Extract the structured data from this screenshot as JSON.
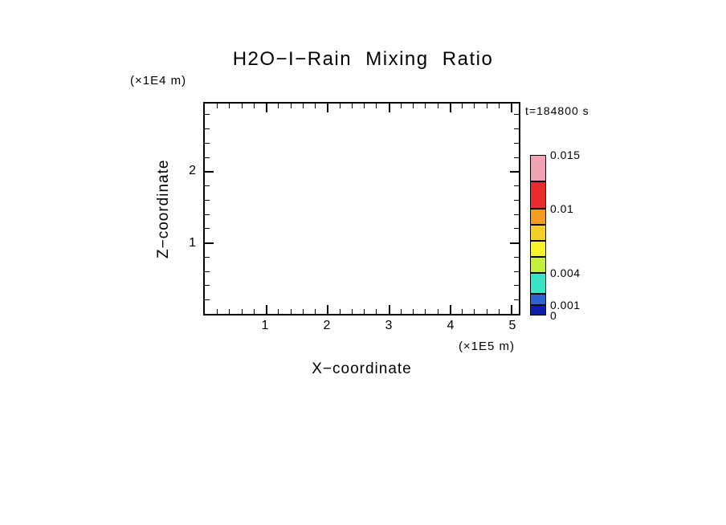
{
  "chart_data": {
    "type": "heatmap",
    "title": "H2O−I−Rain Mixing Ratio",
    "time_label": "t=184800 s",
    "xlabel": "X−coordinate",
    "zlabel": "Z−coordinate",
    "x_units": "(×1E5 m)",
    "z_units": "(×1E4 m)",
    "x_axis": {
      "min": 0,
      "max": 5.13,
      "major_ticks": [
        1,
        2,
        3,
        4,
        5
      ],
      "minor_step": 0.2
    },
    "z_axis": {
      "min": 0,
      "max": 2.95,
      "major_ticks": [
        1,
        2
      ],
      "minor_step": 0.2
    },
    "field_values_visible": false,
    "plot_area_note": "no contour/fill values above the lowest level are visible; plot interior is blank",
    "colorbar": {
      "levels": [
        0,
        0.001,
        0.002,
        0.004,
        0.0055,
        0.007,
        0.0085,
        0.01,
        0.0125,
        0.015
      ],
      "colors": [
        "#0b1fa8",
        "#2e62d2",
        "#3ae2c6",
        "#c3f13c",
        "#f7f32a",
        "#f5d02b",
        "#f59d20",
        "#ea2b2e",
        "#f2a3b3"
      ],
      "labels": [
        {
          "value": 0,
          "text": "0"
        },
        {
          "value": 0.001,
          "text": "0.001"
        },
        {
          "value": 0.004,
          "text": "0.004"
        },
        {
          "value": 0.01,
          "text": "0.01"
        },
        {
          "value": 0.015,
          "text": "0.015"
        }
      ]
    }
  }
}
